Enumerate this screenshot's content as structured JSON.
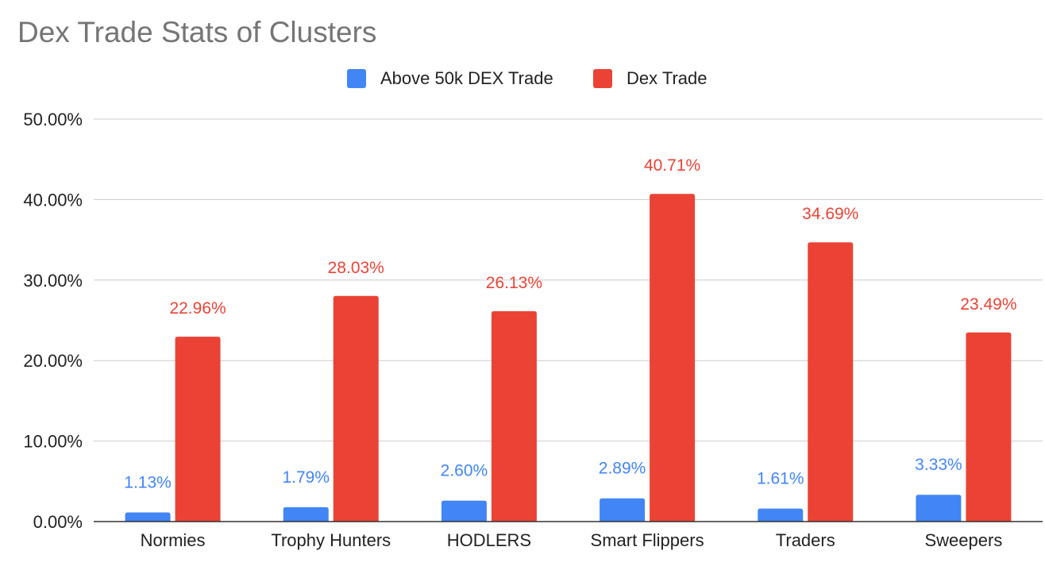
{
  "chart_data": {
    "type": "bar",
    "title": "Dex Trade Stats of Clusters",
    "xlabel": "",
    "ylabel": "",
    "ylim": [
      0,
      50
    ],
    "yticks": [
      "0.00%",
      "10.00%",
      "20.00%",
      "30.00%",
      "40.00%",
      "50.00%"
    ],
    "grid": true,
    "legend_position": "top",
    "categories": [
      "Normies",
      "Trophy Hunters",
      "HODLERS",
      "Smart Flippers",
      "Traders",
      "Sweepers"
    ],
    "series": [
      {
        "name": "Above 50k DEX Trade",
        "color": "#4285f4",
        "values": [
          1.13,
          1.79,
          2.6,
          2.89,
          1.61,
          3.33
        ],
        "labels": [
          "1.13%",
          "1.79%",
          "2.60%",
          "2.89%",
          "1.61%",
          "3.33%"
        ]
      },
      {
        "name": "Dex Trade",
        "color": "#ea4335",
        "values": [
          22.96,
          28.03,
          26.13,
          40.71,
          34.69,
          23.49
        ],
        "labels": [
          "22.96%",
          "28.03%",
          "26.13%",
          "40.71%",
          "34.69%",
          "23.49%"
        ]
      }
    ]
  }
}
